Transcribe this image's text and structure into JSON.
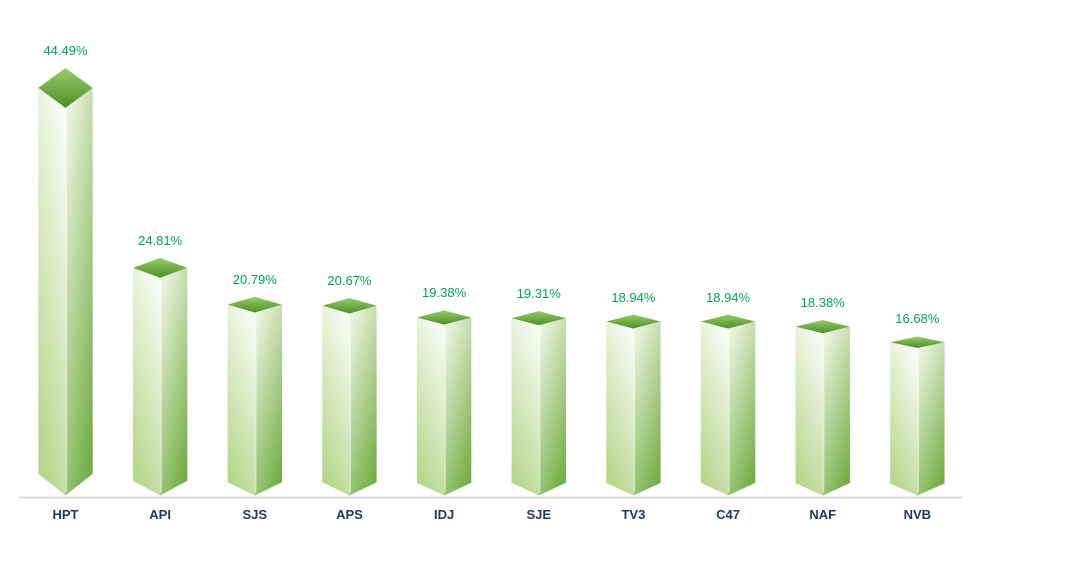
{
  "chart_data": {
    "type": "bar",
    "style": "3d-column",
    "title": "",
    "xlabel": "",
    "ylabel": "",
    "grid": false,
    "legend": null,
    "ylim": [
      0,
      46
    ],
    "categories": [
      "HPT",
      "API",
      "SJS",
      "APS",
      "IDJ",
      "SJE",
      "TV3",
      "C47",
      "NAF",
      "NVB"
    ],
    "values": [
      44.49,
      24.81,
      20.79,
      20.67,
      19.38,
      19.31,
      18.94,
      18.94,
      18.38,
      16.68
    ],
    "value_labels": [
      "44.49%",
      "24.81%",
      "20.79%",
      "20.67%",
      "19.38%",
      "19.31%",
      "18.94%",
      "18.94%",
      "18.38%",
      "16.68%"
    ],
    "colors": {
      "bar_top_light": "#9cca6e",
      "bar_top_dark": "#4b9024",
      "bar_left_light": "#f7fbf2",
      "bar_left_dark": "#b5d68b",
      "bar_right_light": "#ebf3de",
      "bar_right_dark": "#72ae44",
      "front_edge_highlight": "rgba(255,255,255,0.55)",
      "value_label": "#00a551",
      "category_label": "#1f3a68",
      "axis_line": "#dcdcdc",
      "background": "#ffffff"
    }
  }
}
